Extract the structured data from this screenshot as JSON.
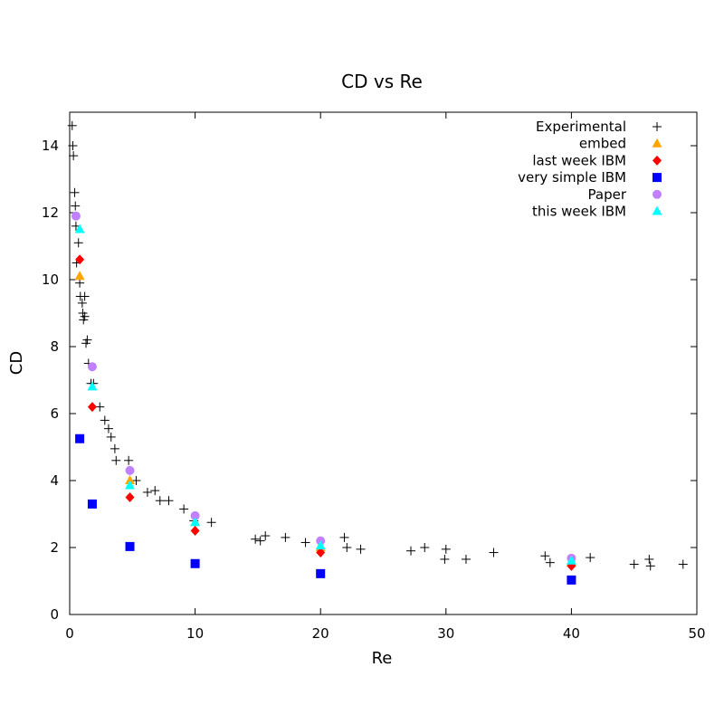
{
  "chart_data": {
    "type": "scatter",
    "title": "CD vs Re",
    "xlabel": "Re",
    "ylabel": "CD",
    "xlim": [
      0,
      50
    ],
    "ylim": [
      0,
      15
    ],
    "xticks": [
      0,
      10,
      20,
      30,
      40,
      50
    ],
    "yticks": [
      0,
      2,
      4,
      6,
      8,
      10,
      12,
      14
    ],
    "grid": false,
    "legend_position": "top-right",
    "series": [
      {
        "name": "Experimental",
        "marker": "plus",
        "color": "#000000",
        "points": [
          [
            0.2,
            14.6
          ],
          [
            0.25,
            14.0
          ],
          [
            0.3,
            13.7
          ],
          [
            0.4,
            12.6
          ],
          [
            0.45,
            12.2
          ],
          [
            0.5,
            11.6
          ],
          [
            0.55,
            10.5
          ],
          [
            0.7,
            11.1
          ],
          [
            0.8,
            9.9
          ],
          [
            0.85,
            9.5
          ],
          [
            1.0,
            9.3
          ],
          [
            1.05,
            9.0
          ],
          [
            1.1,
            8.8
          ],
          [
            1.2,
            9.5
          ],
          [
            1.2,
            8.9
          ],
          [
            1.3,
            8.1
          ],
          [
            1.4,
            8.2
          ],
          [
            1.5,
            7.5
          ],
          [
            1.7,
            6.9
          ],
          [
            1.9,
            6.9
          ],
          [
            2.4,
            6.2
          ],
          [
            2.8,
            5.8
          ],
          [
            3.1,
            5.55
          ],
          [
            3.3,
            5.3
          ],
          [
            3.6,
            4.95
          ],
          [
            3.7,
            4.6
          ],
          [
            4.7,
            4.6
          ],
          [
            5.3,
            4.0
          ],
          [
            6.2,
            3.65
          ],
          [
            6.8,
            3.7
          ],
          [
            7.2,
            3.4
          ],
          [
            7.9,
            3.4
          ],
          [
            9.1,
            3.15
          ],
          [
            9.9,
            2.8
          ],
          [
            11.3,
            2.75
          ],
          [
            14.8,
            2.25
          ],
          [
            15.2,
            2.2
          ],
          [
            15.6,
            2.35
          ],
          [
            17.2,
            2.3
          ],
          [
            18.8,
            2.15
          ],
          [
            21.9,
            2.3
          ],
          [
            22.1,
            2.0
          ],
          [
            23.2,
            1.95
          ],
          [
            27.2,
            1.9
          ],
          [
            28.3,
            2.0
          ],
          [
            29.9,
            1.65
          ],
          [
            30.0,
            1.95
          ],
          [
            31.6,
            1.65
          ],
          [
            33.8,
            1.85
          ],
          [
            37.9,
            1.75
          ],
          [
            38.3,
            1.55
          ],
          [
            41.5,
            1.7
          ],
          [
            45.0,
            1.5
          ],
          [
            46.2,
            1.65
          ],
          [
            46.3,
            1.45
          ],
          [
            48.9,
            1.5
          ]
        ]
      },
      {
        "name": "embed",
        "marker": "triangle",
        "color": "#ffa500",
        "points": [
          [
            0.8,
            10.1
          ],
          [
            4.8,
            4.0
          ],
          [
            10.0,
            2.75
          ],
          [
            20.0,
            2.0
          ],
          [
            40.0,
            1.55
          ]
        ]
      },
      {
        "name": "last week IBM",
        "marker": "diamond",
        "color": "#ff0000",
        "points": [
          [
            0.8,
            10.6
          ],
          [
            1.8,
            6.2
          ],
          [
            4.8,
            3.5
          ],
          [
            10.0,
            2.5
          ],
          [
            20.0,
            1.85
          ],
          [
            40.0,
            1.45
          ]
        ]
      },
      {
        "name": "very simple IBM",
        "marker": "square",
        "color": "#0000ff",
        "points": [
          [
            0.8,
            5.25
          ],
          [
            1.8,
            3.3
          ],
          [
            4.8,
            2.03
          ],
          [
            10.0,
            1.52
          ],
          [
            20.0,
            1.22
          ],
          [
            40.0,
            1.03
          ]
        ]
      },
      {
        "name": "Paper",
        "marker": "circle",
        "color": "#c080ff",
        "points": [
          [
            0.5,
            11.9
          ],
          [
            1.8,
            7.4
          ],
          [
            4.8,
            4.3
          ],
          [
            10.0,
            2.95
          ],
          [
            20.0,
            2.2
          ],
          [
            40.0,
            1.68
          ]
        ]
      },
      {
        "name": "this week IBM",
        "marker": "triangle",
        "color": "#00ffff",
        "points": [
          [
            0.8,
            11.5
          ],
          [
            1.8,
            6.8
          ],
          [
            4.8,
            3.85
          ],
          [
            10.0,
            2.75
          ],
          [
            20.0,
            2.05
          ],
          [
            40.0,
            1.6
          ]
        ]
      }
    ]
  }
}
